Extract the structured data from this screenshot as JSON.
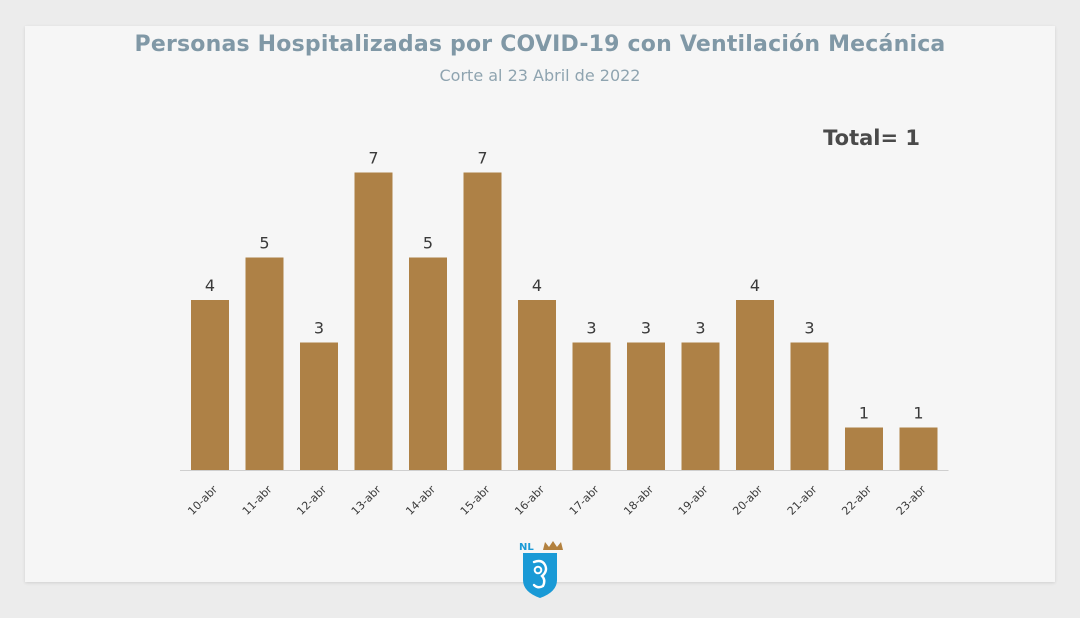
{
  "title": "Personas Hospitalizadas por COVID-19 con Ventilación Mecánica",
  "subtitle": "Corte al 23 Abril de 2022",
  "total_label": "Total= 1",
  "logo": {
    "text": "NL",
    "icon": "nuevo-leon-shield-icon",
    "colors": {
      "shield": "#1a9ad6",
      "crown": "#b3813f"
    }
  },
  "colors": {
    "bar": "#ae8146",
    "title": "#8098a6",
    "subtitle": "#8fa4b0",
    "label": "#3a3a3a",
    "axis": "#cfcfcf"
  },
  "chart_data": {
    "type": "bar",
    "categories": [
      "10-abr",
      "11-abr",
      "12-abr",
      "13-abr",
      "14-abr",
      "15-abr",
      "16-abr",
      "17-abr",
      "18-abr",
      "19-abr",
      "20-abr",
      "21-abr",
      "22-abr",
      "23-abr"
    ],
    "values": [
      4,
      5,
      3,
      7,
      5,
      7,
      4,
      3,
      3,
      3,
      4,
      3,
      1,
      1
    ],
    "title": "Personas Hospitalizadas por COVID-19 con Ventilación Mecánica",
    "subtitle": "Corte al 23 Abril de 2022",
    "xlabel": "",
    "ylabel": "",
    "ylim": [
      0,
      7
    ],
    "data_labels": true,
    "grid": false,
    "legend": "none"
  }
}
